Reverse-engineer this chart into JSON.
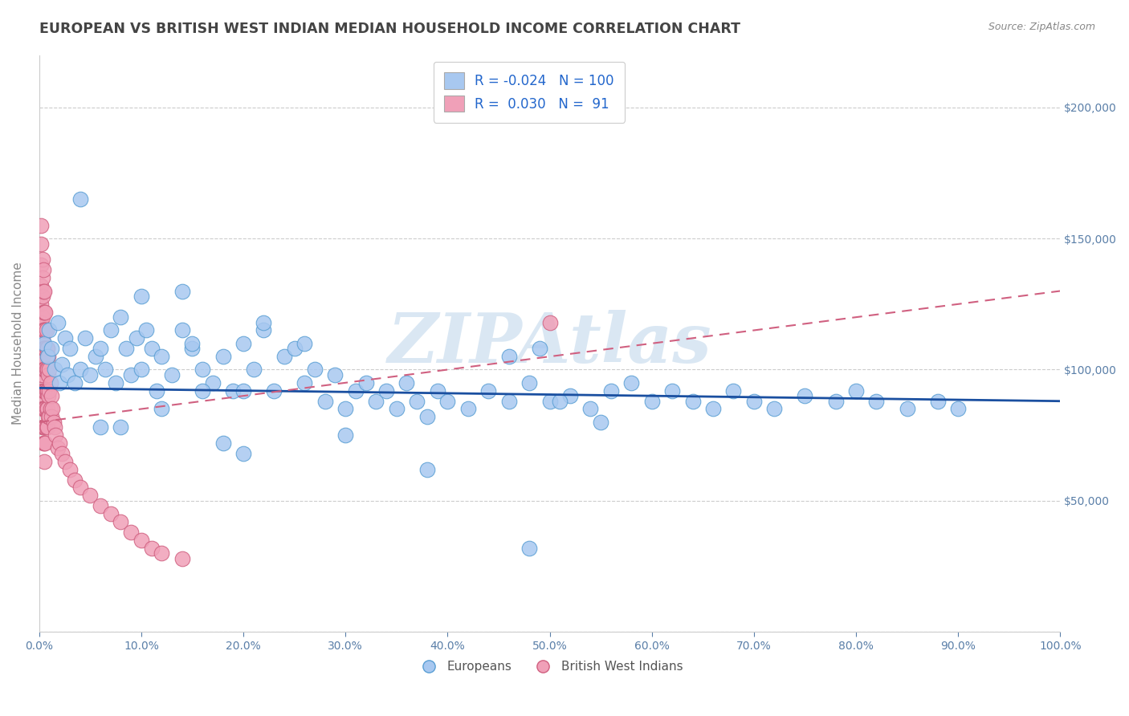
{
  "title": "EUROPEAN VS BRITISH WEST INDIAN MEDIAN HOUSEHOLD INCOME CORRELATION CHART",
  "source_text": "Source: ZipAtlas.com",
  "ylabel": "Median Household Income",
  "xlabel": "",
  "xlim": [
    0,
    1.0
  ],
  "ylim": [
    0,
    220000
  ],
  "xticks": [
    0.0,
    0.1,
    0.2,
    0.3,
    0.4,
    0.5,
    0.6,
    0.7,
    0.8,
    0.9,
    1.0
  ],
  "xticklabels": [
    "0.0%",
    "10.0%",
    "20.0%",
    "30.0%",
    "40.0%",
    "50.0%",
    "60.0%",
    "70.0%",
    "80.0%",
    "90.0%",
    "100.0%"
  ],
  "yticks": [
    0,
    50000,
    100000,
    150000,
    200000
  ],
  "yticklabels_right": [
    "",
    "$50,000",
    "$100,000",
    "$150,000",
    "$200,000"
  ],
  "grid_color": "#cccccc",
  "bg_color": "#ffffff",
  "watermark": "ZIPAtlas",
  "series1_color": "#a8c8f0",
  "series1_edge": "#5a9fd4",
  "series1_line": "#1a4fa0",
  "series2_color": "#f0a0b8",
  "series2_edge": "#d06080",
  "series2_line": "#d06080",
  "series1_label": "Europeans",
  "series2_label": "British West Indians",
  "europeans_x": [
    0.005,
    0.008,
    0.01,
    0.012,
    0.015,
    0.018,
    0.02,
    0.022,
    0.025,
    0.028,
    0.03,
    0.035,
    0.04,
    0.045,
    0.05,
    0.055,
    0.06,
    0.065,
    0.07,
    0.075,
    0.08,
    0.085,
    0.09,
    0.095,
    0.1,
    0.105,
    0.11,
    0.115,
    0.12,
    0.13,
    0.14,
    0.15,
    0.16,
    0.17,
    0.18,
    0.19,
    0.2,
    0.21,
    0.22,
    0.23,
    0.24,
    0.25,
    0.26,
    0.27,
    0.28,
    0.29,
    0.3,
    0.31,
    0.32,
    0.33,
    0.34,
    0.35,
    0.36,
    0.37,
    0.38,
    0.39,
    0.4,
    0.42,
    0.44,
    0.46,
    0.48,
    0.5,
    0.52,
    0.54,
    0.56,
    0.58,
    0.6,
    0.62,
    0.64,
    0.66,
    0.68,
    0.7,
    0.72,
    0.75,
    0.78,
    0.8,
    0.82,
    0.85,
    0.88,
    0.9,
    0.04,
    0.06,
    0.08,
    0.1,
    0.12,
    0.14,
    0.16,
    0.18,
    0.2,
    0.22,
    0.26,
    0.3,
    0.38,
    0.46,
    0.2,
    0.15,
    0.48,
    0.49,
    0.51,
    0.55
  ],
  "europeans_y": [
    110000,
    105000,
    115000,
    108000,
    100000,
    118000,
    95000,
    102000,
    112000,
    98000,
    108000,
    95000,
    100000,
    112000,
    98000,
    105000,
    108000,
    100000,
    115000,
    95000,
    120000,
    108000,
    98000,
    112000,
    100000,
    115000,
    108000,
    92000,
    105000,
    98000,
    115000,
    108000,
    100000,
    95000,
    105000,
    92000,
    110000,
    100000,
    115000,
    92000,
    105000,
    108000,
    95000,
    100000,
    88000,
    98000,
    85000,
    92000,
    95000,
    88000,
    92000,
    85000,
    95000,
    88000,
    82000,
    92000,
    88000,
    85000,
    92000,
    88000,
    95000,
    88000,
    90000,
    85000,
    92000,
    95000,
    88000,
    92000,
    88000,
    85000,
    92000,
    88000,
    85000,
    90000,
    88000,
    92000,
    88000,
    85000,
    88000,
    85000,
    165000,
    78000,
    78000,
    128000,
    85000,
    130000,
    92000,
    72000,
    92000,
    118000,
    110000,
    75000,
    62000,
    105000,
    68000,
    110000,
    32000,
    108000,
    88000,
    80000
  ],
  "bwi_x": [
    0.002,
    0.002,
    0.002,
    0.002,
    0.002,
    0.002,
    0.002,
    0.002,
    0.002,
    0.002,
    0.003,
    0.003,
    0.003,
    0.003,
    0.003,
    0.003,
    0.003,
    0.003,
    0.003,
    0.003,
    0.004,
    0.004,
    0.004,
    0.004,
    0.004,
    0.004,
    0.004,
    0.004,
    0.004,
    0.004,
    0.005,
    0.005,
    0.005,
    0.005,
    0.005,
    0.005,
    0.005,
    0.005,
    0.005,
    0.005,
    0.006,
    0.006,
    0.006,
    0.006,
    0.006,
    0.006,
    0.006,
    0.006,
    0.007,
    0.007,
    0.007,
    0.007,
    0.007,
    0.007,
    0.008,
    0.008,
    0.008,
    0.008,
    0.008,
    0.009,
    0.009,
    0.009,
    0.009,
    0.01,
    0.01,
    0.01,
    0.011,
    0.011,
    0.012,
    0.012,
    0.013,
    0.014,
    0.015,
    0.016,
    0.018,
    0.02,
    0.022,
    0.025,
    0.03,
    0.035,
    0.04,
    0.05,
    0.06,
    0.07,
    0.08,
    0.09,
    0.1,
    0.11,
    0.12,
    0.14,
    0.5
  ],
  "bwi_y": [
    155000,
    148000,
    140000,
    132000,
    125000,
    118000,
    112000,
    105000,
    98000,
    92000,
    142000,
    135000,
    128000,
    120000,
    112000,
    105000,
    98000,
    90000,
    85000,
    78000,
    138000,
    130000,
    122000,
    115000,
    108000,
    100000,
    92000,
    85000,
    78000,
    72000,
    130000,
    122000,
    115000,
    108000,
    100000,
    92000,
    85000,
    78000,
    72000,
    65000,
    122000,
    115000,
    108000,
    100000,
    92000,
    85000,
    78000,
    72000,
    115000,
    108000,
    100000,
    92000,
    85000,
    78000,
    108000,
    100000,
    92000,
    85000,
    78000,
    105000,
    98000,
    90000,
    82000,
    100000,
    92000,
    82000,
    95000,
    85000,
    90000,
    82000,
    85000,
    80000,
    78000,
    75000,
    70000,
    72000,
    68000,
    65000,
    62000,
    58000,
    55000,
    52000,
    48000,
    45000,
    42000,
    38000,
    35000,
    32000,
    30000,
    28000,
    118000
  ]
}
